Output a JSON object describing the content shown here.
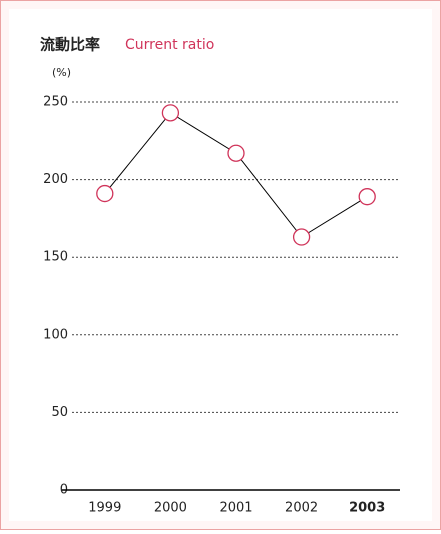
{
  "chart_data": {
    "type": "line",
    "title": "流動比率",
    "subtitle": "Current ratio",
    "y_label": "(%)",
    "categories": [
      "1999",
      "2000",
      "2001",
      "2002",
      "2003"
    ],
    "series": [
      {
        "name": "Current ratio",
        "color": "#d0345a",
        "values": [
          191,
          243,
          217,
          163,
          189
        ]
      }
    ],
    "ylim": [
      0,
      250
    ],
    "yticks": [
      0,
      50,
      100,
      150,
      200,
      250
    ],
    "grid": true,
    "bold_categories": [
      4
    ]
  }
}
